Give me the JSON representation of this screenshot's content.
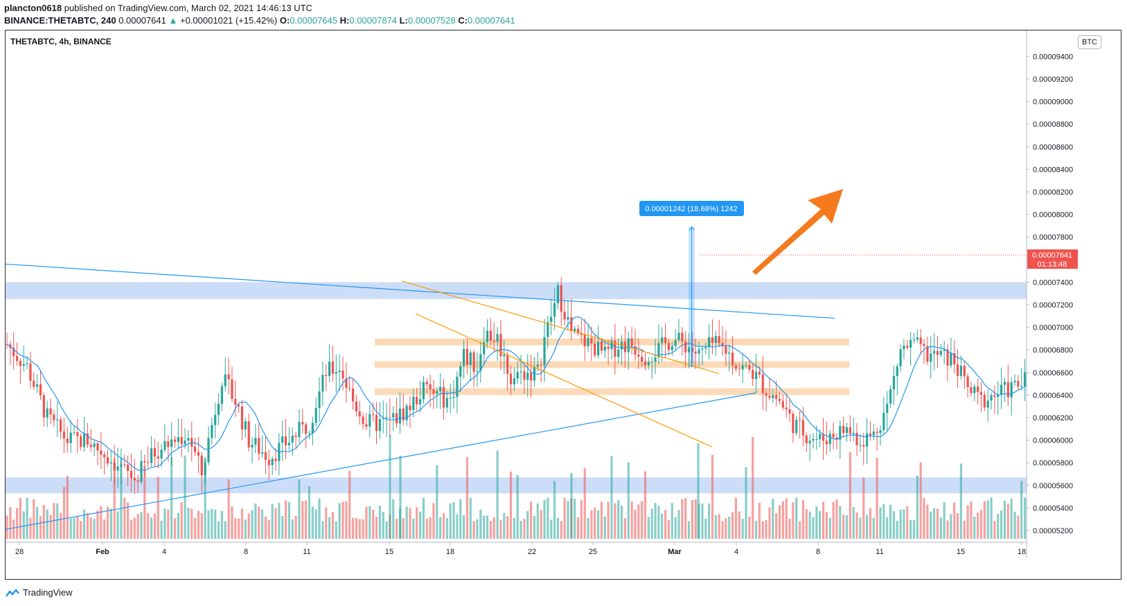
{
  "header": {
    "author": "plancton0618",
    "published": "published on TradingView.com, March 02, 2021 14:46:13 UTC",
    "symbol": "BINANCE:THETABTC, 240",
    "last": "0.00007641",
    "change": "+0.00001021 (+15.42%)",
    "o_label": "O:",
    "o": "0.00007645",
    "h_label": "H:",
    "h": "0.00007874",
    "l_label": "L:",
    "l": "0.00007528",
    "c_label": "C:",
    "c": "0.00007641"
  },
  "pane_title": "THETABTC, 4h, BINANCE",
  "currency_button": "BTC",
  "price_label": {
    "price": "0.00007641",
    "countdown": "01:13:48"
  },
  "measure_label": "0.00001242 (18.68%) 1242",
  "footer_brand": "TradingView",
  "colors": {
    "up": "#26a69a",
    "down": "#ef5350",
    "ma": "#2196f3",
    "zone": "#bbd1f6",
    "orange_zone": "#fbd4ac",
    "orange_line": "#ff9800",
    "arrow": "#f57a1e",
    "measure": "#2196f3",
    "price_bg": "#ef5350"
  },
  "chart_data": {
    "type": "candlestick",
    "timeframe": "4h",
    "y_ticks": [
      "0.00009400",
      "0.00009200",
      "0.00009000",
      "0.00008800",
      "0.00008600",
      "0.00008400",
      "0.00008200",
      "0.00008000",
      "0.00007800",
      "0.00007600",
      "0.00007400",
      "0.00007200",
      "0.00007000",
      "0.00006800",
      "0.00006600",
      "0.00006400",
      "0.00006200",
      "0.00006000",
      "0.00005800",
      "0.00005600",
      "0.00005400",
      "0.00005200"
    ],
    "ylim": [
      5.14e-05,
      9.58e-05
    ],
    "x_ticks": [
      "28",
      "Feb",
      "4",
      "8",
      "11",
      "15",
      "18",
      "22",
      "25",
      "Mar",
      "4",
      "8",
      "11",
      "15",
      "18"
    ],
    "last_close": 7.641e-05,
    "measure": {
      "from": 6.648e-05,
      "to": 7.89e-05,
      "change": "0.00001242",
      "percent": "18.68%",
      "bars": "1242"
    },
    "zones_blue": [
      [
        7.25e-05,
        7.4e-05
      ],
      [
        5.53e-05,
        5.67e-05
      ]
    ],
    "zones_orange": [
      [
        6.84e-05,
        6.9e-05
      ],
      [
        6.64e-05,
        6.7e-05
      ],
      [
        6.4e-05,
        6.46e-05
      ]
    ],
    "segments": [
      {
        "anchor": "EARLY",
        "color": "#2196f3",
        "p1": 7.56e-05,
        "p2": 7.08e-05
      },
      {
        "anchor": "WEDGE",
        "color": "#2196f3",
        "p1": 5.21e-05,
        "p2": 6.42e-05
      },
      {
        "anchor": "FALL",
        "color": "#ff9800",
        "p1": 7.41e-05,
        "p2": 6.59e-05
      },
      {
        "anchor": "FALL2",
        "color": "#ff9800",
        "p1": 7.12e-05,
        "p2": 5.94e-05
      }
    ],
    "ohlc": []
  }
}
